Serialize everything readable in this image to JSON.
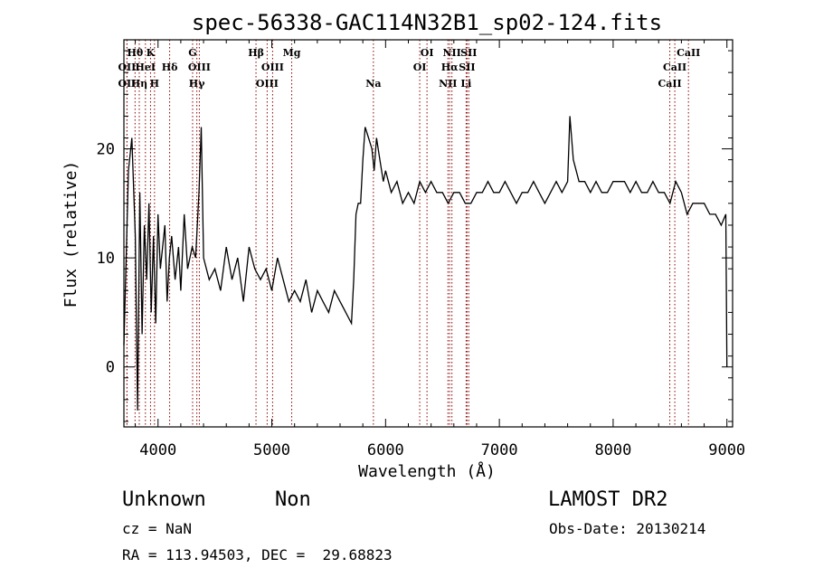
{
  "chart_data": {
    "type": "line",
    "title": "spec-56338-GAC114N32B1_sp02-124.fits",
    "xlabel": "Wavelength (Å)",
    "ylabel": "Flux (relative)",
    "xlim": [
      3700,
      9050
    ],
    "ylim": [
      -5.5,
      30
    ],
    "x_ticks": [
      4000,
      5000,
      6000,
      7000,
      8000,
      9000
    ],
    "y_ticks": [
      0,
      10,
      20
    ],
    "grid": false,
    "line_color": "#000000",
    "marker_color": "#8b0000",
    "series": [
      {
        "x": [
          3700,
          3740,
          3770,
          3800,
          3820,
          3840,
          3860,
          3880,
          3900,
          3920,
          3940,
          3960,
          3980,
          4000,
          4020,
          4040,
          4060,
          4080,
          4100,
          4120,
          4150,
          4180,
          4200,
          4230,
          4260,
          4300,
          4330,
          4360,
          4380,
          4400,
          4450,
          4500,
          4550,
          4600,
          4650,
          4700,
          4750,
          4800,
          4850,
          4900,
          4950,
          5000,
          5050,
          5100,
          5150,
          5200,
          5250,
          5300,
          5350,
          5400,
          5450,
          5500,
          5550,
          5600,
          5650,
          5700,
          5720,
          5740,
          5760,
          5780,
          5800,
          5820,
          5850,
          5880,
          5900,
          5920,
          5950,
          5980,
          6000,
          6050,
          6100,
          6150,
          6200,
          6250,
          6300,
          6350,
          6400,
          6450,
          6500,
          6550,
          6600,
          6650,
          6700,
          6750,
          6800,
          6850,
          6900,
          6950,
          7000,
          7050,
          7100,
          7150,
          7200,
          7250,
          7300,
          7350,
          7400,
          7450,
          7500,
          7550,
          7600,
          7620,
          7650,
          7700,
          7750,
          7800,
          7850,
          7900,
          7950,
          8000,
          8050,
          8100,
          8150,
          8200,
          8250,
          8300,
          8350,
          8400,
          8450,
          8500,
          8550,
          8600,
          8650,
          8700,
          8750,
          8800,
          8850,
          8900,
          8950,
          8990,
          9000
        ],
        "y": [
          2,
          18,
          21,
          12,
          -4,
          16,
          3,
          13,
          8,
          15,
          5,
          12,
          4,
          14,
          9,
          11,
          13,
          6,
          10,
          12,
          8,
          11,
          7,
          14,
          9,
          11,
          10,
          16,
          22,
          10,
          8,
          9,
          7,
          11,
          8,
          10,
          6,
          11,
          9,
          8,
          9,
          7,
          10,
          8,
          6,
          7,
          6,
          8,
          5,
          7,
          6,
          5,
          7,
          6,
          5,
          4,
          8,
          14,
          15,
          15,
          19,
          22,
          21,
          20,
          18,
          21,
          19,
          17,
          18,
          16,
          17,
          15,
          16,
          15,
          17,
          16,
          17,
          16,
          16,
          15,
          16,
          16,
          15,
          15,
          16,
          16,
          17,
          16,
          16,
          17,
          16,
          15,
          16,
          16,
          17,
          16,
          15,
          16,
          17,
          16,
          17,
          23,
          19,
          17,
          17,
          16,
          17,
          16,
          16,
          17,
          17,
          17,
          16,
          17,
          16,
          16,
          17,
          16,
          16,
          15,
          17,
          16,
          14,
          15,
          15,
          15,
          14,
          14,
          13,
          14,
          0
        ]
      }
    ],
    "lines": [
      {
        "x": 3727,
        "label": "OII",
        "row": 2
      },
      {
        "x": 3727,
        "label": "OII",
        "row": 1
      },
      {
        "x": 3798,
        "label": "Hθ",
        "row": 0
      },
      {
        "x": 3835,
        "label": "Hη",
        "row": 2
      },
      {
        "x": 3889,
        "label": "HeI",
        "row": 1
      },
      {
        "x": 3934,
        "label": "K",
        "row": 0
      },
      {
        "x": 3969,
        "label": "H",
        "row": 2
      },
      {
        "x": 4102,
        "label": "Hδ",
        "row": 1
      },
      {
        "x": 4304,
        "label": "G",
        "row": 0
      },
      {
        "x": 4341,
        "label": "Hγ",
        "row": 2
      },
      {
        "x": 4363,
        "label": "OIII",
        "row": 1
      },
      {
        "x": 4861,
        "label": "Hβ",
        "row": 0
      },
      {
        "x": 4959,
        "label": "OIII",
        "row": 2
      },
      {
        "x": 5007,
        "label": "OIII",
        "row": 1
      },
      {
        "x": 5175,
        "label": "Mg",
        "row": 0
      },
      {
        "x": 5893,
        "label": "Na",
        "row": 2
      },
      {
        "x": 6300,
        "label": "OI",
        "row": 1
      },
      {
        "x": 6364,
        "label": "OI",
        "row": 0
      },
      {
        "x": 6548,
        "label": "NII",
        "row": 2
      },
      {
        "x": 6563,
        "label": "Hα",
        "row": 1
      },
      {
        "x": 6583,
        "label": "NII",
        "row": 0
      },
      {
        "x": 6708,
        "label": "Li",
        "row": 2
      },
      {
        "x": 6716,
        "label": "SII",
        "row": 1
      },
      {
        "x": 6731,
        "label": "SII",
        "row": 0
      },
      {
        "x": 8498,
        "label": "CaII",
        "row": 2
      },
      {
        "x": 8542,
        "label": "CaII",
        "row": 1
      },
      {
        "x": 8662,
        "label": "CaII",
        "row": 0
      }
    ]
  },
  "footer": {
    "class": "Unknown",
    "subclass": "Non",
    "survey": "LAMOST DR2",
    "cz": "cz = NaN",
    "obs_date": "Obs-Date: 20130214",
    "coords": "RA = 113.94503, DEC =  29.68823"
  }
}
